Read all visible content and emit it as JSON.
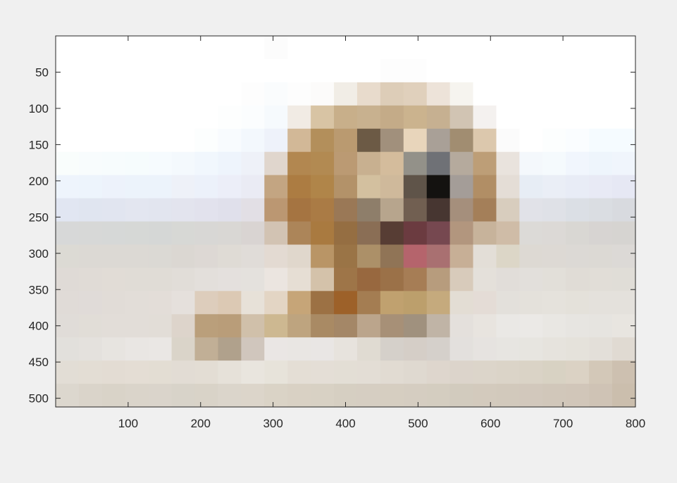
{
  "chart_data": {
    "type": "heatmap",
    "title": "",
    "xlabel": "",
    "ylabel": "",
    "xlim": [
      0,
      800
    ],
    "ylim": [
      0,
      512
    ],
    "y_reversed": true,
    "grid": false,
    "cell_size": 32,
    "rows": 16,
    "cols": 25,
    "x_ticks": [
      100,
      200,
      300,
      400,
      500,
      600,
      700,
      800
    ],
    "x_tick_labels": [
      "100",
      "200",
      "300",
      "400",
      "500",
      "600",
      "700",
      "800"
    ],
    "y_ticks": [
      50,
      100,
      150,
      200,
      250,
      300,
      350,
      400,
      450,
      500
    ],
    "y_tick_labels": [
      "50",
      "100",
      "150",
      "200",
      "250",
      "300",
      "350",
      "400",
      "450",
      "500"
    ],
    "frame_color": "#262626",
    "pixels": [
      [
        "#ffffff",
        "#ffffff",
        "#ffffff",
        "#ffffff",
        "#ffffff",
        "#ffffff",
        "#ffffff",
        "#ffffff",
        "#ffffff",
        "#fcfcfc",
        "#ffffff",
        "#ffffff",
        "#ffffff",
        "#ffffff",
        "#ffffff",
        "#ffffff",
        "#ffffff",
        "#ffffff",
        "#ffffff",
        "#ffffff",
        "#ffffff",
        "#ffffff",
        "#ffffff",
        "#ffffff",
        "#ffffff"
      ],
      [
        "#ffffff",
        "#ffffff",
        "#ffffff",
        "#ffffff",
        "#ffffff",
        "#ffffff",
        "#ffffff",
        "#ffffff",
        "#ffffff",
        "#ffffff",
        "#ffffff",
        "#ffffff",
        "#ffffff",
        "#ffffff",
        "#fdfdfd",
        "#fdfdfd",
        "#ffffff",
        "#ffffff",
        "#ffffff",
        "#ffffff",
        "#ffffff",
        "#ffffff",
        "#ffffff",
        "#ffffff",
        "#ffffff"
      ],
      [
        "#ffffff",
        "#ffffff",
        "#ffffff",
        "#ffffff",
        "#ffffff",
        "#ffffff",
        "#ffffff",
        "#ffffff",
        "#fdfdfd",
        "#fafcfd",
        "#fdfdfd",
        "#fcfbfa",
        "#f1ede6",
        "#e8dbcc",
        "#ddcdb8",
        "#e0d0bc",
        "#ede3d9",
        "#f6f4ef",
        "#ffffff",
        "#ffffff",
        "#ffffff",
        "#ffffff",
        "#ffffff",
        "#ffffff",
        "#ffffff"
      ],
      [
        "#ffffff",
        "#ffffff",
        "#ffffff",
        "#ffffff",
        "#ffffff",
        "#ffffff",
        "#ffffff",
        "#fdfefe",
        "#fbfdfe",
        "#f6fafd",
        "#f1ebe4",
        "#d8c4a4",
        "#c8af8a",
        "#c8b18f",
        "#c4ab88",
        "#cbb38e",
        "#c6b091",
        "#d1c4b3",
        "#f4f1ef",
        "#ffffff",
        "#ffffff",
        "#ffffff",
        "#ffffff",
        "#ffffff",
        "#ffffff"
      ],
      [
        "#ffffff",
        "#ffffff",
        "#ffffff",
        "#ffffff",
        "#ffffff",
        "#ffffff",
        "#fcfefe",
        "#f8fbfe",
        "#f3f8fd",
        "#eef2fa",
        "#d2b897",
        "#b38f5b",
        "#ba9a70",
        "#6c5a45",
        "#a1907c",
        "#e8d5bb",
        "#a9a097",
        "#a18d71",
        "#dcc8ad",
        "#fbfbfb",
        "#ffffff",
        "#fcfefe",
        "#fafdff",
        "#f5fbff",
        "#f5fbff"
      ],
      [
        "#f9fdfc",
        "#f8fcfd",
        "#f7fcfd",
        "#f6fcfd",
        "#f6fbfe",
        "#f4f9fd",
        "#f1f7fd",
        "#eef4fc",
        "#eef1f8",
        "#e0d6cd",
        "#b28750",
        "#b28a52",
        "#bb9a73",
        "#c8b090",
        "#d4bc9c",
        "#939189",
        "#6f7176",
        "#b5aa9d",
        "#bd9e77",
        "#e9e3dd",
        "#f4f8fc",
        "#f5fafd",
        "#f1f6fd",
        "#eef5fc",
        "#f0f5fc"
      ],
      [
        "#eef4fc",
        "#edf4fc",
        "#edf2fb",
        "#ecf3fb",
        "#ecf3fb",
        "#eef1f8",
        "#ecf1fa",
        "#eceef8",
        "#eaebf4",
        "#c3a582",
        "#ac7c42",
        "#b08549",
        "#b39269",
        "#d3c09f",
        "#cfb99b",
        "#5f5449",
        "#141210",
        "#a49d98",
        "#b18e65",
        "#e4ddd6",
        "#e7edf5",
        "#eaeef6",
        "#e8ecf6",
        "#e8eaf5",
        "#e6e8f4"
      ],
      [
        "#e1e6f2",
        "#e0e5f0",
        "#e1e5f0",
        "#e3e6f0",
        "#e2e5ef",
        "#e3e4ee",
        "#e2e2ed",
        "#e0e0eb",
        "#e2dfe5",
        "#bb9772",
        "#a57441",
        "#aa7b45",
        "#9a7856",
        "#8e7e6a",
        "#b7a58d",
        "#715f51",
        "#473631",
        "#a58f7c",
        "#a47f59",
        "#d8cdbe",
        "#e1e2e8",
        "#dfe1e7",
        "#dbdfe5",
        "#dadde2",
        "#d8dadf"
      ],
      [
        "#d7d8d8",
        "#d7d8d7",
        "#d6d8d7",
        "#d6d8d6",
        "#d5d7d6",
        "#d7d8d5",
        "#d8d7d5",
        "#d9d7d4",
        "#d9d4d2",
        "#d2c3b3",
        "#ac8559",
        "#a97a40",
        "#956e42",
        "#8a6e55",
        "#573d34",
        "#6b3b40",
        "#764850",
        "#b2967e",
        "#c7b39b",
        "#cfbca7",
        "#dcdad7",
        "#dcd9d6",
        "#d9d7d3",
        "#d7d4d2",
        "#d6d4d1"
      ],
      [
        "#dcdad4",
        "#dcd9d4",
        "#dcd9d4",
        "#dcd9d4",
        "#dbd9d4",
        "#dbd7d2",
        "#ddd8d4",
        "#dfdbd5",
        "#e0dcd8",
        "#e3dad2",
        "#e0d7cc",
        "#b99566",
        "#9a7446",
        "#ac9068",
        "#907456",
        "#b5646c",
        "#a97071",
        "#c7af96",
        "#e3ded7",
        "#dcd6c7",
        "#ddd9d3",
        "#ddd9d4",
        "#dcd9d5",
        "#dcd9d4",
        "#dcd9d6"
      ],
      [
        "#dfdad6",
        "#e0dbd6",
        "#e1dcd6",
        "#e0dcd6",
        "#e0dcd6",
        "#e1ddd8",
        "#e3dfdb",
        "#e4e0dd",
        "#e4e1dd",
        "#ebe5e0",
        "#e6ded4",
        "#d4c2aa",
        "#9e7548",
        "#98683f",
        "#9b7148",
        "#a67d55",
        "#b79c7d",
        "#d8cbbb",
        "#e4e0da",
        "#e1ddd9",
        "#e2dfdb",
        "#e2dfd9",
        "#e0dcd6",
        "#e1ddd7",
        "#e0ddd7"
      ],
      [
        "#e0dbd7",
        "#e0dbd8",
        "#e1dcd7",
        "#e2ddd8",
        "#e3ddd8",
        "#e5e0dc",
        "#ddcdbc",
        "#dcc9b4",
        "#e7e1d8",
        "#e3d5c4",
        "#c6a578",
        "#9c7144",
        "#9d6129",
        "#a47d52",
        "#c0a16f",
        "#bc9f6c",
        "#c5aa7d",
        "#e3ddd4",
        "#e4dcd6",
        "#e3e0db",
        "#e4e1db",
        "#e5e2dc",
        "#e4e1da",
        "#e4e1dc",
        "#e4e1dc"
      ],
      [
        "#e0dcd8",
        "#e1ddd7",
        "#e2ddd8",
        "#e2ddd8",
        "#e2ddd7",
        "#ddd4cb",
        "#ba9f7b",
        "#b99d79",
        "#d0c0aa",
        "#cdb891",
        "#bea47f",
        "#a98a64",
        "#a48767",
        "#bba58c",
        "#a79077",
        "#a0917e",
        "#c0b4a6",
        "#e4e0dc",
        "#e8e4df",
        "#eae8e5",
        "#ebe9e6",
        "#e9e7e3",
        "#e7e5e1",
        "#e6e4e0",
        "#e8e5e0"
      ],
      [
        "#e2e0dc",
        "#e4e1dd",
        "#e7e4e0",
        "#e9e6e3",
        "#eae7e4",
        "#dad4c9",
        "#c1af96",
        "#b0a18c",
        "#d0c6bd",
        "#eae6e4",
        "#e9e6e3",
        "#e9e6e4",
        "#e7e3dd",
        "#e0dbd2",
        "#d5d0ca",
        "#d5cec7",
        "#d5d0cb",
        "#e3e0dd",
        "#e6e3e0",
        "#e7e5e1",
        "#e7e5e0",
        "#e6e3dd",
        "#e5e2db",
        "#e3dfd9",
        "#e0dad2"
      ],
      [
        "#e2ddd5",
        "#e3ddd4",
        "#e3dcd3",
        "#e4ddd4",
        "#e3ddd3",
        "#e2dcd4",
        "#e3ddd4",
        "#e6e1d9",
        "#e9e5de",
        "#e7e3da",
        "#e4ded5",
        "#e4ded6",
        "#e3ded5",
        "#e3ddd5",
        "#e1dbd2",
        "#dfd9d0",
        "#ded6cd",
        "#dcd4cb",
        "#dcd5ca",
        "#dbd4c8",
        "#dad3c6",
        "#d8d2c3",
        "#dbd2c4",
        "#d3c8b8",
        "#cdc0b0"
      ],
      [
        "#dcd7ce",
        "#dad4ca",
        "#d9d3c8",
        "#dad4ca",
        "#dad4cb",
        "#d8d3c9",
        "#d9d3c8",
        "#dbd5cb",
        "#dcd5ca",
        "#dad3c6",
        "#d9d1c4",
        "#d8d1c4",
        "#d6cfc2",
        "#d6cec2",
        "#d6cec1",
        "#d5cdc1",
        "#d4cdc0",
        "#d2cbbe",
        "#d3cabd",
        "#d2c9bc",
        "#d2c8bc",
        "#d1c7ba",
        "#d1c6b9",
        "#cfc3b5",
        "#cbbead"
      ]
    ]
  }
}
